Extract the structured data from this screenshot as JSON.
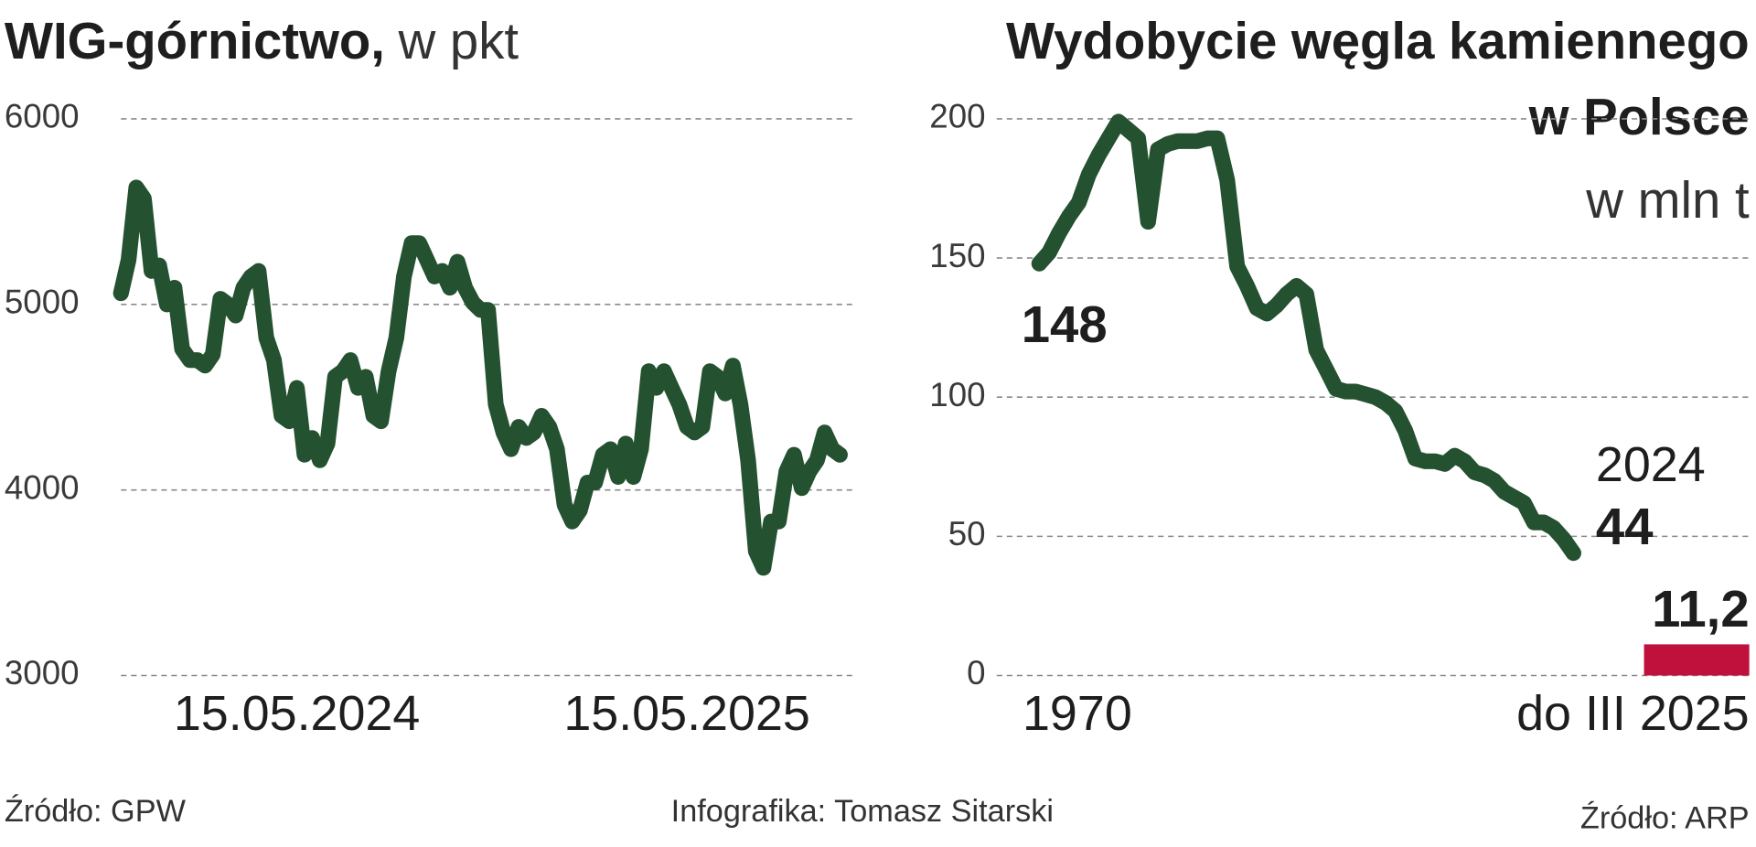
{
  "chart_data": [
    {
      "type": "line",
      "title": "WIG-górnictwo,",
      "subtitle": "w pkt",
      "categories": [
        null,
        null,
        null,
        null,
        null,
        null,
        null,
        null,
        null,
        null,
        null,
        null,
        null,
        null,
        null,
        null,
        null,
        null,
        null,
        null,
        null,
        null,
        null,
        "15.05.2024",
        null,
        null,
        null,
        null,
        null,
        null,
        null,
        null,
        null,
        null,
        null,
        null,
        null,
        null,
        null,
        null,
        null,
        null,
        null,
        null,
        null,
        null,
        null,
        null,
        null,
        null,
        null,
        null,
        null,
        null,
        null,
        null,
        null,
        null,
        null,
        null,
        null,
        null,
        null,
        null,
        null,
        null,
        null,
        null,
        null,
        null,
        null,
        null,
        null,
        null,
        "15.05.2025",
        null,
        null,
        null,
        null,
        null,
        null,
        null,
        null,
        null,
        null,
        null,
        null,
        null,
        null,
        null,
        null,
        null,
        null,
        null,
        null
      ],
      "series": [
        {
          "name": "WIG-górnictwo",
          "color": "#24512f",
          "values": [
            5060,
            5240,
            5630,
            5570,
            5180,
            5210,
            5000,
            5090,
            4760,
            4700,
            4700,
            4670,
            4730,
            5030,
            5000,
            4940,
            5090,
            5150,
            5180,
            4820,
            4700,
            4400,
            4370,
            4550,
            4190,
            4280,
            4160,
            4250,
            4610,
            4640,
            4700,
            4550,
            4610,
            4400,
            4370,
            4640,
            4820,
            5150,
            5330,
            5330,
            5240,
            5150,
            5180,
            5090,
            5230,
            5090,
            5010,
            4970,
            4970,
            4460,
            4310,
            4220,
            4340,
            4280,
            4310,
            4400,
            4340,
            4220,
            3920,
            3830,
            3890,
            4040,
            4040,
            4190,
            4220,
            4070,
            4250,
            4070,
            4220,
            4640,
            4550,
            4640,
            4550,
            4460,
            4340,
            4310,
            4340,
            4640,
            4610,
            4520,
            4670,
            4460,
            4160,
            3670,
            3580,
            3830,
            3830,
            4100,
            4190,
            4010,
            4100,
            4160,
            4310,
            4220,
            4190
          ]
        }
      ],
      "ylim": [
        3000,
        6000
      ],
      "yticks": [
        3000,
        4000,
        5000,
        6000
      ],
      "grid": true,
      "source": "Źródło: GPW"
    },
    {
      "type": "line",
      "title": [
        "Wydobycie węgla kamiennego",
        "w Polsce"
      ],
      "subtitle": "w mln t",
      "categories": [
        "1970",
        null,
        null,
        null,
        null,
        null,
        null,
        null,
        null,
        null,
        null,
        null,
        null,
        null,
        null,
        null,
        null,
        null,
        null,
        null,
        null,
        null,
        null,
        null,
        null,
        null,
        null,
        null,
        null,
        null,
        null,
        null,
        null,
        null,
        null,
        null,
        null,
        null,
        null,
        null,
        null,
        null,
        null,
        null,
        null,
        null,
        null,
        null,
        null,
        null,
        null,
        null,
        null,
        null,
        null
      ],
      "series": [
        {
          "name": "Wydobycie",
          "color": "#24512f",
          "values": [
            148,
            152,
            159,
            165,
            170,
            180,
            187,
            193,
            199,
            196,
            193,
            163,
            189,
            191,
            192,
            192,
            192,
            193,
            193,
            178,
            147,
            140,
            132,
            130,
            133,
            137,
            140,
            137,
            117,
            110,
            103,
            102,
            102,
            101,
            100,
            98,
            95,
            88,
            78,
            77,
            77,
            76,
            79,
            77,
            73,
            72,
            70,
            66,
            64,
            62,
            55,
            55,
            53,
            49,
            44
          ]
        }
      ],
      "end_label": "2024",
      "extra_bar": {
        "label": "do III 2025",
        "value": 11.2,
        "value_label": "11,2",
        "color": "#c0103c"
      },
      "ylim": [
        0,
        200
      ],
      "yticks": [
        0,
        50,
        100,
        150,
        200
      ],
      "grid": true,
      "source": "Źródło: ARP"
    }
  ],
  "credit": "Infografika: Tomasz Sitarski"
}
